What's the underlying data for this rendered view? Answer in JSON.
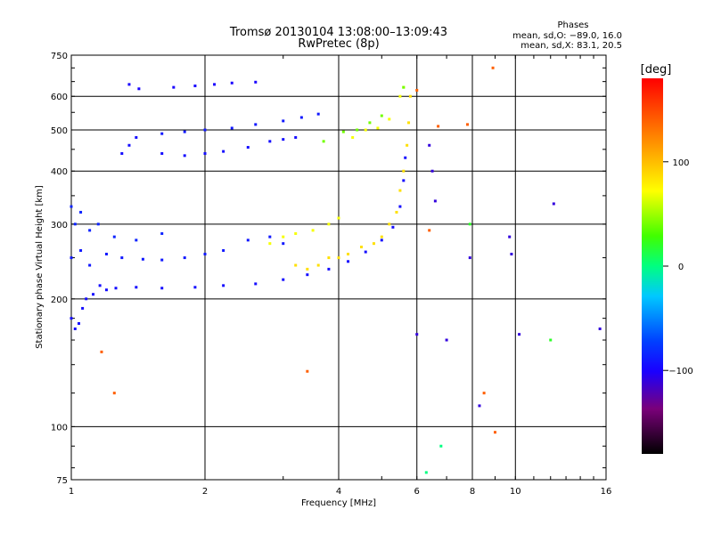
{
  "chart_data": {
    "type": "scatter",
    "title_line1": "Tromsø 20130104 13:08:00–13:09:43",
    "title_line2": "RwPretec (8p)",
    "stats": {
      "heading": "Phases",
      "line_o": "mean, sd,O: −89.0, 16.0",
      "line_x": "mean, sd,X:  83.1, 20.5"
    },
    "xlabel": "Frequency [MHz]",
    "ylabel": "Stationary phase Virtual Height [km]",
    "x_scale": "log",
    "y_scale": "log",
    "xlim": [
      1,
      16
    ],
    "ylim": [
      75,
      750
    ],
    "x_ticks": [
      1,
      2,
      4,
      6,
      8,
      10,
      16
    ],
    "x_tick_labels": [
      "1",
      "2",
      "4",
      "6",
      "8",
      "10",
      "16"
    ],
    "y_ticks": [
      75,
      100,
      200,
      300,
      400,
      500,
      600,
      750
    ],
    "y_tick_labels": [
      "75",
      "100",
      "200",
      "300",
      "400",
      "500",
      "600",
      "750"
    ],
    "grid": true,
    "colorbar": {
      "label": "[deg]",
      "range": [
        -180,
        180
      ],
      "ticks": [
        100,
        0,
        -100
      ],
      "tick_labels": [
        "100",
        "0",
        "−100"
      ]
    },
    "series": [
      {
        "color_deg": -95,
        "points": [
          [
            1.0,
            180
          ],
          [
            1.02,
            170
          ],
          [
            1.04,
            175
          ],
          [
            1.06,
            190
          ],
          [
            1.08,
            200
          ],
          [
            1.12,
            205
          ],
          [
            1.16,
            215
          ],
          [
            1.2,
            210
          ],
          [
            1.26,
            212
          ],
          [
            1.4,
            213
          ],
          [
            1.6,
            212
          ],
          [
            1.9,
            213
          ],
          [
            2.2,
            215
          ],
          [
            2.6,
            217
          ],
          [
            3.0,
            222
          ],
          [
            3.4,
            228
          ],
          [
            3.8,
            235
          ],
          [
            4.2,
            245
          ],
          [
            4.6,
            258
          ],
          [
            5.0,
            275
          ],
          [
            5.3,
            295
          ],
          [
            5.5,
            330
          ],
          [
            5.6,
            380
          ],
          [
            5.65,
            430
          ]
        ]
      },
      {
        "color_deg": -90,
        "points": [
          [
            1.0,
            250
          ],
          [
            1.05,
            260
          ],
          [
            1.1,
            240
          ],
          [
            1.2,
            255
          ],
          [
            1.3,
            250
          ],
          [
            1.45,
            248
          ],
          [
            1.6,
            247
          ],
          [
            1.8,
            250
          ],
          [
            2.0,
            255
          ],
          [
            2.2,
            260
          ],
          [
            2.5,
            275
          ],
          [
            2.8,
            280
          ],
          [
            3.0,
            270
          ]
        ]
      },
      {
        "color_deg": -85,
        "points": [
          [
            1.0,
            330
          ],
          [
            1.02,
            300
          ],
          [
            1.05,
            320
          ],
          [
            1.1,
            290
          ],
          [
            1.15,
            300
          ],
          [
            1.25,
            280
          ],
          [
            1.4,
            275
          ],
          [
            1.6,
            285
          ]
        ]
      },
      {
        "color_deg": -100,
        "points": [
          [
            1.35,
            640
          ],
          [
            1.42,
            625
          ],
          [
            1.7,
            630
          ],
          [
            1.9,
            635
          ],
          [
            2.1,
            640
          ],
          [
            2.3,
            645
          ],
          [
            2.6,
            648
          ]
        ]
      },
      {
        "color_deg": -95,
        "points": [
          [
            1.3,
            440
          ],
          [
            1.35,
            460
          ],
          [
            1.4,
            480
          ],
          [
            1.6,
            440
          ],
          [
            1.8,
            435
          ],
          [
            2.0,
            440
          ],
          [
            2.2,
            445
          ],
          [
            2.5,
            455
          ],
          [
            2.8,
            470
          ],
          [
            3.0,
            475
          ],
          [
            3.2,
            480
          ]
        ]
      },
      {
        "color_deg": -90,
        "points": [
          [
            1.6,
            490
          ],
          [
            1.8,
            495
          ],
          [
            2.0,
            500
          ],
          [
            2.3,
            505
          ],
          [
            2.6,
            515
          ],
          [
            3.0,
            525
          ],
          [
            3.3,
            535
          ],
          [
            3.6,
            545
          ]
        ]
      },
      {
        "color_deg": 85,
        "points": [
          [
            3.2,
            240
          ],
          [
            3.4,
            235
          ],
          [
            3.6,
            240
          ],
          [
            3.8,
            250
          ],
          [
            4.0,
            250
          ],
          [
            4.2,
            255
          ],
          [
            4.5,
            265
          ],
          [
            4.8,
            270
          ],
          [
            5.0,
            280
          ],
          [
            5.2,
            300
          ],
          [
            5.4,
            320
          ],
          [
            5.5,
            360
          ],
          [
            5.6,
            400
          ],
          [
            5.7,
            460
          ],
          [
            5.75,
            520
          ],
          [
            5.8,
            600
          ]
        ]
      },
      {
        "color_deg": 70,
        "points": [
          [
            2.8,
            270
          ],
          [
            3.0,
            280
          ],
          [
            3.2,
            285
          ],
          [
            3.5,
            290
          ],
          [
            3.8,
            300
          ],
          [
            4.0,
            310
          ],
          [
            4.3,
            480
          ],
          [
            4.6,
            500
          ],
          [
            4.9,
            505
          ],
          [
            5.2,
            530
          ],
          [
            5.5,
            600
          ],
          [
            5.6,
            630
          ]
        ]
      },
      {
        "color_deg": 40,
        "points": [
          [
            3.7,
            470
          ],
          [
            4.1,
            495
          ],
          [
            4.4,
            500
          ],
          [
            4.7,
            520
          ],
          [
            5.0,
            540
          ],
          [
            5.6,
            630
          ]
        ]
      },
      {
        "color_deg": 140,
        "points": [
          [
            1.17,
            150
          ],
          [
            1.25,
            120
          ],
          [
            3.4,
            135
          ],
          [
            6.0,
            620
          ],
          [
            6.7,
            510
          ],
          [
            7.8,
            515
          ],
          [
            8.5,
            120
          ],
          [
            8.9,
            700
          ],
          [
            9.0,
            97
          ],
          [
            6.4,
            290
          ]
        ]
      },
      {
        "color_deg": -110,
        "points": [
          [
            6.0,
            165
          ],
          [
            6.4,
            460
          ],
          [
            6.5,
            400
          ],
          [
            6.6,
            340
          ],
          [
            7.9,
            250
          ],
          [
            8.3,
            112
          ],
          [
            9.7,
            280
          ],
          [
            9.8,
            255
          ],
          [
            10.2,
            165
          ],
          [
            12.2,
            335
          ],
          [
            15.5,
            170
          ],
          [
            7.0,
            160
          ]
        ]
      },
      {
        "color_deg": 20,
        "points": [
          [
            7.9,
            300
          ],
          [
            12.0,
            160
          ]
        ]
      },
      {
        "color_deg": 0,
        "points": [
          [
            6.8,
            90
          ],
          [
            6.3,
            78
          ]
        ]
      }
    ]
  }
}
